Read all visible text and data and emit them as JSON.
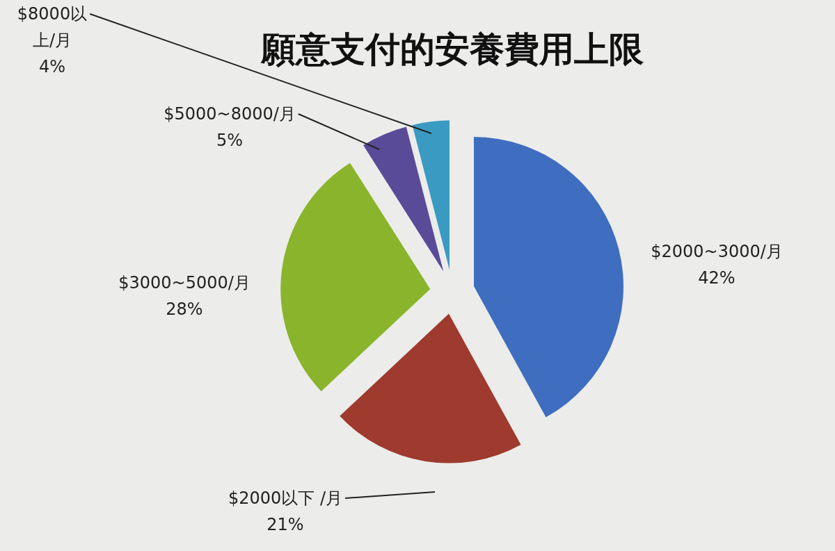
{
  "chart_data": {
    "type": "pie",
    "title": "願意支付的安養費用上限",
    "categories": [
      "$2000~3000/月",
      "$2000以下 /月",
      "$3000~5000/月",
      "$5000~8000/月",
      "$8000以上/月"
    ],
    "values": [
      42,
      21,
      28,
      5,
      4
    ],
    "colors": [
      "#3f6dbf",
      "#9e3a2e",
      "#89b42c",
      "#5a4b98",
      "#3b9ac2"
    ],
    "value_labels": [
      "42%",
      "21%",
      "28%",
      "5%",
      "4%"
    ]
  }
}
